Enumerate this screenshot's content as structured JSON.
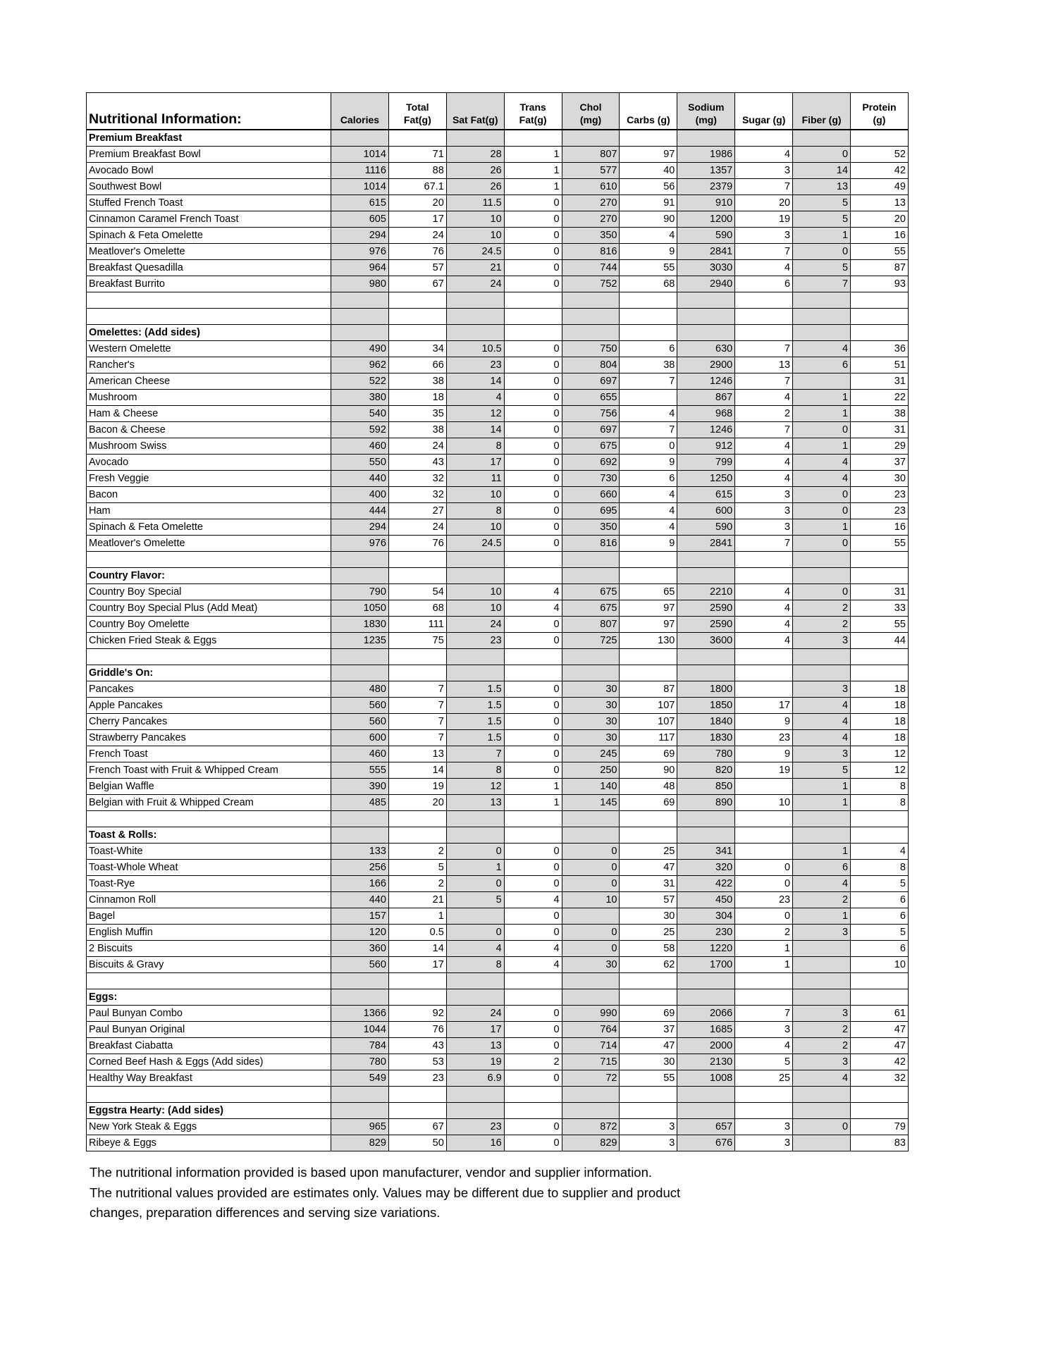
{
  "header": {
    "title": "Nutritional Information:",
    "columns": [
      {
        "line1": "",
        "line2": "Calories"
      },
      {
        "line1": "Total",
        "line2": "Fat(g)"
      },
      {
        "line1": "",
        "line2": "Sat Fat(g)"
      },
      {
        "line1": "Trans",
        "line2": "Fat(g)"
      },
      {
        "line1": "Chol",
        "line2": "(mg)"
      },
      {
        "line1": "",
        "line2": "Carbs (g)"
      },
      {
        "line1": "Sodium",
        "line2": "(mg)"
      },
      {
        "line1": "",
        "line2": "Sugar (g)"
      },
      {
        "line1": "",
        "line2": "Fiber (g)"
      },
      {
        "line1": "Protein",
        "line2": "(g)"
      }
    ]
  },
  "shade_color": "#d9d9d9",
  "sections": [
    {
      "title": "Premium Breakfast",
      "items": [
        {
          "name": "Premium Breakfast Bowl",
          "values": [
            "1014",
            "71",
            "28",
            "1",
            "807",
            "97",
            "1986",
            "4",
            "0",
            "52"
          ]
        },
        {
          "name": "Avocado Bowl",
          "values": [
            "1116",
            "88",
            "26",
            "1",
            "577",
            "40",
            "1357",
            "3",
            "14",
            "42"
          ]
        },
        {
          "name": "Southwest Bowl",
          "values": [
            "1014",
            "67.1",
            "26",
            "1",
            "610",
            "56",
            "2379",
            "7",
            "13",
            "49"
          ]
        },
        {
          "name": "Stuffed French Toast",
          "values": [
            "615",
            "20",
            "11.5",
            "0",
            "270",
            "91",
            "910",
            "20",
            "5",
            "13"
          ]
        },
        {
          "name": "Cinnamon Caramel French Toast",
          "values": [
            "605",
            "17",
            "10",
            "0",
            "270",
            "90",
            "1200",
            "19",
            "5",
            "20"
          ]
        },
        {
          "name": "Spinach & Feta Omelette",
          "values": [
            "294",
            "24",
            "10",
            "0",
            "350",
            "4",
            "590",
            "3",
            "1",
            "16"
          ]
        },
        {
          "name": "Meatlover's Omelette",
          "values": [
            "976",
            "76",
            "24.5",
            "0",
            "816",
            "9",
            "2841",
            "7",
            "0",
            "55"
          ]
        },
        {
          "name": "Breakfast Quesadilla",
          "values": [
            "964",
            "57",
            "21",
            "0",
            "744",
            "55",
            "3030",
            "4",
            "5",
            "87"
          ]
        },
        {
          "name": "Breakfast Burrito",
          "values": [
            "980",
            "67",
            "24",
            "0",
            "752",
            "68",
            "2940",
            "6",
            "7",
            "93"
          ]
        }
      ]
    },
    {
      "title": "Omelettes: (Add sides)",
      "items": [
        {
          "name": "Western Omelette",
          "values": [
            "490",
            "34",
            "10.5",
            "0",
            "750",
            "6",
            "630",
            "7",
            "4",
            "36"
          ]
        },
        {
          "name": "Rancher's",
          "values": [
            "962",
            "66",
            "23",
            "0",
            "804",
            "38",
            "2900",
            "13",
            "6",
            "51"
          ]
        },
        {
          "name": "American Cheese",
          "values": [
            "522",
            "38",
            "14",
            "0",
            "697",
            "7",
            "1246",
            "7",
            "",
            "31"
          ]
        },
        {
          "name": "Mushroom",
          "values": [
            "380",
            "18",
            "4",
            "0",
            "655",
            "",
            "867",
            "4",
            "1",
            "22"
          ]
        },
        {
          "name": "Ham & Cheese",
          "values": [
            "540",
            "35",
            "12",
            "0",
            "756",
            "4",
            "968",
            "2",
            "1",
            "38"
          ]
        },
        {
          "name": "Bacon & Cheese",
          "values": [
            "592",
            "38",
            "14",
            "0",
            "697",
            "7",
            "1246",
            "7",
            "0",
            "31"
          ]
        },
        {
          "name": "Mushroom Swiss",
          "values": [
            "460",
            "24",
            "8",
            "0",
            "675",
            "0",
            "912",
            "4",
            "1",
            "29"
          ]
        },
        {
          "name": "Avocado",
          "values": [
            "550",
            "43",
            "17",
            "0",
            "692",
            "9",
            "799",
            "4",
            "4",
            "37"
          ]
        },
        {
          "name": "Fresh Veggie",
          "values": [
            "440",
            "32",
            "11",
            "0",
            "730",
            "6",
            "1250",
            "4",
            "4",
            "30"
          ]
        },
        {
          "name": "Bacon",
          "values": [
            "400",
            "32",
            "10",
            "0",
            "660",
            "4",
            "615",
            "3",
            "0",
            "23"
          ]
        },
        {
          "name": "Ham",
          "values": [
            "444",
            "27",
            "8",
            "0",
            "695",
            "4",
            "600",
            "3",
            "0",
            "23"
          ]
        },
        {
          "name": "Spinach & Feta Omelette",
          "values": [
            "294",
            "24",
            "10",
            "0",
            "350",
            "4",
            "590",
            "3",
            "1",
            "16"
          ]
        },
        {
          "name": "Meatlover's Omelette",
          "values": [
            "976",
            "76",
            "24.5",
            "0",
            "816",
            "9",
            "2841",
            "7",
            "0",
            "55"
          ]
        }
      ]
    },
    {
      "title": "Country Flavor:",
      "items": [
        {
          "name": "Country Boy Special",
          "values": [
            "790",
            "54",
            "10",
            "4",
            "675",
            "65",
            "2210",
            "4",
            "0",
            "31"
          ]
        },
        {
          "name": "Country Boy Special Plus (Add Meat)",
          "values": [
            "1050",
            "68",
            "10",
            "4",
            "675",
            "97",
            "2590",
            "4",
            "2",
            "33"
          ]
        },
        {
          "name": "Country Boy Omelette",
          "values": [
            "1830",
            "111",
            "24",
            "0",
            "807",
            "97",
            "2590",
            "4",
            "2",
            "55"
          ]
        },
        {
          "name": "Chicken Fried Steak & Eggs",
          "values": [
            "1235",
            "75",
            "23",
            "0",
            "725",
            "130",
            "3600",
            "4",
            "3",
            "44"
          ]
        }
      ]
    },
    {
      "title": "Griddle's On:",
      "items": [
        {
          "name": "Pancakes",
          "values": [
            "480",
            "7",
            "1.5",
            "0",
            "30",
            "87",
            "1800",
            "",
            "3",
            "18"
          ]
        },
        {
          "name": "Apple Pancakes",
          "values": [
            "560",
            "7",
            "1.5",
            "0",
            "30",
            "107",
            "1850",
            "17",
            "4",
            "18"
          ]
        },
        {
          "name": "Cherry Pancakes",
          "values": [
            "560",
            "7",
            "1.5",
            "0",
            "30",
            "107",
            "1840",
            "9",
            "4",
            "18"
          ]
        },
        {
          "name": "Strawberry Pancakes",
          "values": [
            "600",
            "7",
            "1.5",
            "0",
            "30",
            "117",
            "1830",
            "23",
            "4",
            "18"
          ]
        },
        {
          "name": "French Toast",
          "values": [
            "460",
            "13",
            "7",
            "0",
            "245",
            "69",
            "780",
            "9",
            "3",
            "12"
          ]
        },
        {
          "name": "French Toast with Fruit & Whipped Cream",
          "values": [
            "555",
            "14",
            "8",
            "0",
            "250",
            "90",
            "820",
            "19",
            "5",
            "12"
          ]
        },
        {
          "name": "Belgian Waffle",
          "values": [
            "390",
            "19",
            "12",
            "1",
            "140",
            "48",
            "850",
            "",
            "1",
            "8"
          ]
        },
        {
          "name": "Belgian with Fruit & Whipped Cream",
          "values": [
            "485",
            "20",
            "13",
            "1",
            "145",
            "69",
            "890",
            "10",
            "1",
            "8"
          ]
        }
      ]
    },
    {
      "title": "Toast & Rolls:",
      "items": [
        {
          "name": "Toast-White",
          "values": [
            "133",
            "2",
            "0",
            "0",
            "0",
            "25",
            "341",
            "",
            "1",
            "4"
          ]
        },
        {
          "name": "Toast-Whole Wheat",
          "values": [
            "256",
            "5",
            "1",
            "0",
            "0",
            "47",
            "320",
            "0",
            "6",
            "8"
          ]
        },
        {
          "name": "Toast-Rye",
          "values": [
            "166",
            "2",
            "0",
            "0",
            "0",
            "31",
            "422",
            "0",
            "4",
            "5"
          ]
        },
        {
          "name": "Cinnamon Roll",
          "values": [
            "440",
            "21",
            "5",
            "4",
            "10",
            "57",
            "450",
            "23",
            "2",
            "6"
          ]
        },
        {
          "name": "Bagel",
          "values": [
            "157",
            "1",
            "",
            "0",
            "",
            "30",
            "304",
            "0",
            "1",
            "6"
          ]
        },
        {
          "name": "English Muffin",
          "values": [
            "120",
            "0.5",
            "0",
            "0",
            "0",
            "25",
            "230",
            "2",
            "3",
            "5"
          ]
        },
        {
          "name": "2 Biscuits",
          "values": [
            "360",
            "14",
            "4",
            "4",
            "0",
            "58",
            "1220",
            "1",
            "",
            "6"
          ]
        },
        {
          "name": "Biscuits & Gravy",
          "values": [
            "560",
            "17",
            "8",
            "4",
            "30",
            "62",
            "1700",
            "1",
            "",
            "10"
          ]
        }
      ]
    },
    {
      "title": "Eggs:",
      "items": [
        {
          "name": "Paul Bunyan Combo",
          "values": [
            "1366",
            "92",
            "24",
            "0",
            "990",
            "69",
            "2066",
            "7",
            "3",
            "61"
          ]
        },
        {
          "name": "Paul Bunyan Original",
          "values": [
            "1044",
            "76",
            "17",
            "0",
            "764",
            "37",
            "1685",
            "3",
            "2",
            "47"
          ]
        },
        {
          "name": "Breakfast Ciabatta",
          "values": [
            "784",
            "43",
            "13",
            "0",
            "714",
            "47",
            "2000",
            "4",
            "2",
            "47"
          ]
        },
        {
          "name": "Corned Beef Hash & Eggs (Add sides)",
          "values": [
            "780",
            "53",
            "19",
            "2",
            "715",
            "30",
            "2130",
            "5",
            "3",
            "42"
          ]
        },
        {
          "name": "Healthy Way Breakfast",
          "values": [
            "549",
            "23",
            "6.9",
            "0",
            "72",
            "55",
            "1008",
            "25",
            "4",
            "32"
          ]
        }
      ]
    },
    {
      "title": "Eggstra Hearty: (Add sides)",
      "items": [
        {
          "name": "New York Steak & Eggs",
          "values": [
            "965",
            "67",
            "23",
            "0",
            "872",
            "3",
            "657",
            "3",
            "0",
            "79"
          ]
        },
        {
          "name": "Ribeye & Eggs",
          "values": [
            "829",
            "50",
            "16",
            "0",
            "829",
            "3",
            "676",
            "3",
            "",
            "83"
          ]
        }
      ]
    }
  ],
  "footer": {
    "lines": [
      "The nutritional information provided is based upon manufacturer, vendor and supplier information.",
      "The nutritional values provided are estimates only. Values may be different due to supplier and product",
      "changes,  preparation differences and serving size variations."
    ]
  }
}
